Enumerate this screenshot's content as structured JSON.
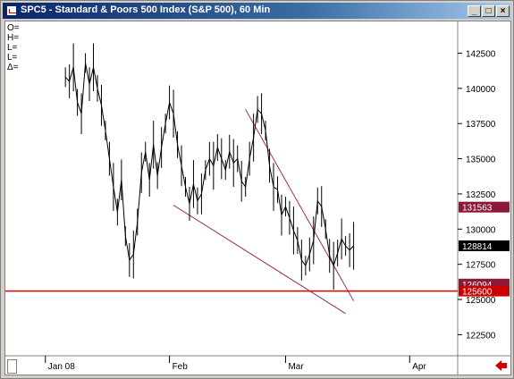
{
  "window": {
    "title": "SPC5 - Standard & Poors 500 Index (S&P 500), 60 Min",
    "btn_min": "_",
    "btn_max": "□",
    "btn_close": "×"
  },
  "readouts": [
    "O=",
    "H=",
    "L=",
    "L=",
    "Δ="
  ],
  "price_boxes": [
    {
      "label": "131563",
      "value": 131563,
      "bg": "#8b1a3a",
      "fg": "#ffffff"
    },
    {
      "label": "128814",
      "value": 128814,
      "bg": "#000000",
      "fg": "#ffffff"
    },
    {
      "label": "126094",
      "value": 126094,
      "bg": "#8b1a3a",
      "fg": "#ffffff"
    },
    {
      "label": "125600",
      "value": 125600,
      "bg": "#cc0000",
      "fg": "#ffffff"
    }
  ],
  "colors": {
    "price_line": "#000000",
    "trend_lines": "#993355",
    "support_line": "#dd0000",
    "grid_frame": "#808080"
  },
  "chart_data": {
    "type": "line",
    "title": "SPC5 - Standard & Poors 500 Index (S&P 500), 60 Min",
    "x_tick_labels": [
      "Jan 08",
      "Feb",
      "Mar",
      "Apr"
    ],
    "x_ticks_days": [
      0,
      31,
      60,
      91
    ],
    "y_tick_labels": [
      "142500",
      "140000",
      "137500",
      "135000",
      "132500",
      "130000",
      "127500",
      "125000",
      "122500"
    ],
    "y_ticks": [
      142500,
      140000,
      137500,
      135000,
      132500,
      130000,
      127500,
      125000,
      122500
    ],
    "ylim": [
      121000,
      144500
    ],
    "xlim_days": [
      -10,
      103
    ],
    "series": [
      {
        "x_days": [
          5,
          6,
          7,
          8,
          9,
          10,
          11,
          12,
          13,
          14,
          15,
          16,
          17,
          18,
          19,
          20,
          21,
          22,
          23,
          24,
          25,
          26,
          27,
          28,
          29,
          30,
          31,
          32,
          33,
          34,
          35,
          36,
          37,
          38,
          39,
          40,
          41,
          42,
          43,
          44,
          45,
          46,
          47,
          48,
          49,
          50,
          51,
          52,
          53,
          54,
          55,
          56,
          57,
          58,
          59,
          60,
          61,
          62,
          63,
          64,
          65,
          66,
          67,
          68,
          69,
          70,
          71,
          72,
          73,
          74,
          75,
          76,
          77
        ],
        "values": [
          140800,
          140500,
          141500,
          139000,
          138200,
          141800,
          140300,
          141500,
          140000,
          138800,
          137000,
          135000,
          133000,
          131200,
          133500,
          129500,
          127800,
          128200,
          130500,
          134000,
          135500,
          133500,
          136000,
          133800,
          135800,
          137500,
          139000,
          138200,
          136000,
          134500,
          133000,
          131800,
          133200,
          132000,
          132500,
          134200,
          135000,
          134500,
          135800,
          135000,
          134200,
          135500,
          134700,
          135000,
          133400,
          133000,
          135000,
          136500,
          138500,
          138200,
          137000,
          134500,
          133000,
          132800,
          131000,
          131600,
          130800,
          129900,
          129200,
          127800,
          127400,
          128200,
          129200,
          132000,
          131600,
          130000,
          128100,
          127400,
          128300,
          129300,
          128800,
          128500,
          128814
        ]
      }
    ],
    "trend_lines": [
      {
        "from": [
          50,
          138500
        ],
        "to": [
          77,
          124900
        ]
      },
      {
        "from": [
          32,
          131700
        ],
        "to": [
          75,
          124000
        ]
      }
    ],
    "support_line": 125600,
    "grid": false
  }
}
